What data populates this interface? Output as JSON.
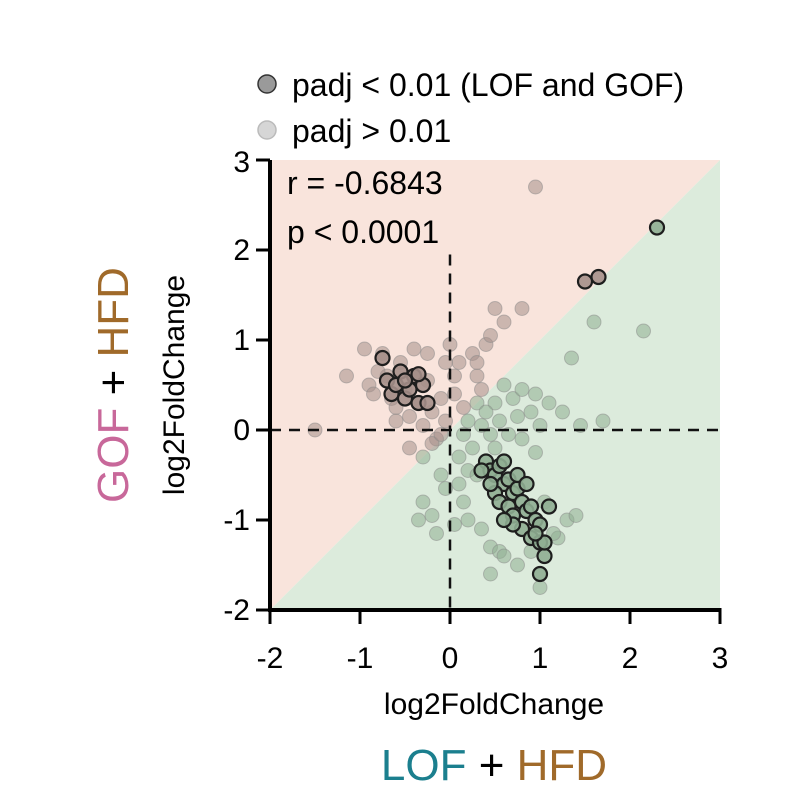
{
  "chart_data": {
    "type": "scatter",
    "xlabel": "log2FoldChange",
    "ylabel": "log2FoldChange",
    "xlim": [
      -2,
      3
    ],
    "ylim": [
      -2,
      3
    ],
    "x_ticks": [
      "-2",
      "-1",
      "0",
      "1",
      "2",
      "3"
    ],
    "y_ticks": [
      "-2",
      "-1",
      "0",
      "1",
      "2",
      "3"
    ],
    "x_condition": {
      "part1": "LOF",
      "plus": "+",
      "part2": "HFD"
    },
    "y_condition": {
      "part1": "GOF",
      "plus": "+",
      "part2": "HFD"
    },
    "legend": {
      "significant": "padj < 0.01 (LOF and GOF)",
      "not_significant": "padj > 0.01"
    },
    "annotations": {
      "r": "r = -0.6843",
      "p": "p < 0.0001"
    },
    "colors": {
      "region_upper": "#f9e4dc",
      "region_lower": "#dcebdc",
      "brown_fill": "#a58f8a",
      "green_fill": "#8fae92",
      "sig_edge": "#1e1e1e",
      "ns_edge": "#8a8a8a",
      "lof_color": "#1b7f8e",
      "gof_color": "#c8689a",
      "hfd_color": "#a06a2a",
      "legend_sig": "#9a9a9a",
      "legend_ns": "#d6d6d6"
    },
    "series": [
      {
        "name": "padj > 0.01",
        "points": [
          [
            -1.5,
            0.0
          ],
          [
            -1.15,
            0.6
          ],
          [
            -0.95,
            0.9
          ],
          [
            -0.9,
            0.5
          ],
          [
            -0.85,
            0.4
          ],
          [
            -0.75,
            0.85
          ],
          [
            -0.7,
            0.6
          ],
          [
            -0.65,
            0.35
          ],
          [
            -0.6,
            0.25
          ],
          [
            -0.55,
            0.75
          ],
          [
            -0.5,
            0.45
          ],
          [
            -0.45,
            0.15
          ],
          [
            -0.4,
            0.9
          ],
          [
            -0.35,
            0.3
          ],
          [
            -0.3,
            0.05
          ],
          [
            -0.25,
            0.55
          ],
          [
            -0.2,
            0.2
          ],
          [
            -0.15,
            -0.1
          ],
          [
            -0.1,
            0.35
          ],
          [
            -0.05,
            0.1
          ],
          [
            0.0,
            0.95
          ],
          [
            0.05,
            0.6
          ],
          [
            0.1,
            0.75
          ],
          [
            -0.45,
            -0.2
          ],
          [
            -0.3,
            -0.3
          ],
          [
            -0.2,
            -0.15
          ],
          [
            -0.1,
            -0.05
          ],
          [
            0.25,
            0.85
          ],
          [
            0.3,
            0.6
          ],
          [
            0.4,
            0.95
          ],
          [
            0.45,
            1.05
          ],
          [
            0.5,
            1.35
          ],
          [
            0.6,
            1.2
          ],
          [
            0.8,
            1.35
          ],
          [
            0.95,
            2.7
          ],
          [
            1.6,
            1.2
          ],
          [
            2.15,
            1.1
          ],
          [
            1.35,
            0.8
          ],
          [
            0.5,
            0.3
          ],
          [
            0.6,
            0.5
          ],
          [
            0.7,
            0.35
          ],
          [
            0.8,
            0.45
          ],
          [
            0.9,
            0.2
          ],
          [
            0.95,
            0.4
          ],
          [
            1.1,
            0.3
          ],
          [
            1.25,
            0.2
          ],
          [
            1.45,
            0.05
          ],
          [
            0.3,
            0.3
          ],
          [
            0.2,
            0.1
          ],
          [
            0.15,
            -0.05
          ],
          [
            0.35,
            0.05
          ],
          [
            0.4,
            0.2
          ],
          [
            0.25,
            -0.2
          ],
          [
            0.1,
            -0.3
          ],
          [
            -0.1,
            -0.5
          ],
          [
            -0.05,
            -0.65
          ],
          [
            0.1,
            -0.6
          ],
          [
            0.15,
            -0.8
          ],
          [
            -0.2,
            -0.95
          ],
          [
            -0.3,
            -0.8
          ],
          [
            -0.35,
            -1.0
          ],
          [
            -0.15,
            -1.15
          ],
          [
            0.05,
            -1.05
          ],
          [
            0.2,
            -1.0
          ],
          [
            0.35,
            -1.1
          ],
          [
            0.45,
            -1.3
          ],
          [
            0.55,
            -1.35
          ],
          [
            0.6,
            -1.4
          ],
          [
            0.75,
            -1.5
          ],
          [
            0.9,
            -1.35
          ],
          [
            0.45,
            -1.6
          ],
          [
            1.0,
            -1.75
          ],
          [
            1.2,
            -1.2
          ],
          [
            1.3,
            -1.0
          ],
          [
            1.4,
            -0.95
          ],
          [
            1.15,
            -1.15
          ],
          [
            1.05,
            -0.8
          ],
          [
            0.2,
            -0.45
          ],
          [
            0.3,
            -0.5
          ],
          [
            0.5,
            -0.2
          ],
          [
            0.65,
            -0.05
          ],
          [
            0.8,
            -0.1
          ],
          [
            0.95,
            -0.25
          ],
          [
            1.0,
            0.05
          ],
          [
            0.75,
            0.15
          ],
          [
            0.55,
            0.1
          ],
          [
            0.45,
            -0.05
          ],
          [
            0.05,
            0.4
          ],
          [
            0.15,
            0.25
          ],
          [
            0.35,
            0.45
          ],
          [
            -0.6,
            0.1
          ],
          [
            -0.8,
            0.65
          ],
          [
            -0.25,
            0.85
          ],
          [
            -0.05,
            0.75
          ],
          [
            0.3,
            0.75
          ],
          [
            1.7,
            0.1
          ]
        ]
      },
      {
        "name": "padj < 0.01 (LOF and GOF)",
        "points": [
          [
            -0.75,
            0.8
          ],
          [
            -0.7,
            0.55
          ],
          [
            -0.65,
            0.4
          ],
          [
            -0.6,
            0.5
          ],
          [
            -0.55,
            0.65
          ],
          [
            -0.5,
            0.35
          ],
          [
            -0.45,
            0.45
          ],
          [
            -0.4,
            0.6
          ],
          [
            -0.35,
            0.3
          ],
          [
            -0.3,
            0.5
          ],
          [
            -0.5,
            0.55
          ],
          [
            -0.35,
            0.62
          ],
          [
            -0.25,
            0.3
          ],
          [
            1.5,
            1.65
          ],
          [
            1.65,
            1.7
          ],
          [
            2.3,
            2.25
          ],
          [
            0.4,
            -0.35
          ],
          [
            0.45,
            -0.45
          ],
          [
            0.5,
            -0.5
          ],
          [
            0.55,
            -0.4
          ],
          [
            0.6,
            -0.6
          ],
          [
            0.65,
            -0.55
          ],
          [
            0.7,
            -0.7
          ],
          [
            0.75,
            -0.65
          ],
          [
            0.8,
            -0.8
          ],
          [
            0.85,
            -0.9
          ],
          [
            0.9,
            -0.85
          ],
          [
            0.95,
            -1.0
          ],
          [
            1.0,
            -1.05
          ],
          [
            0.5,
            -0.7
          ],
          [
            0.55,
            -0.8
          ],
          [
            0.65,
            -0.85
          ],
          [
            0.7,
            -0.95
          ],
          [
            0.8,
            -1.1
          ],
          [
            0.9,
            -1.2
          ],
          [
            0.45,
            -0.6
          ],
          [
            0.35,
            -0.45
          ],
          [
            0.6,
            -0.35
          ],
          [
            0.75,
            -0.5
          ],
          [
            0.85,
            -0.6
          ],
          [
            1.0,
            -1.25
          ],
          [
            1.05,
            -1.4
          ],
          [
            1.1,
            -0.85
          ],
          [
            1.0,
            -1.6
          ],
          [
            1.05,
            -1.25
          ],
          [
            0.95,
            -1.15
          ],
          [
            0.7,
            -1.05
          ],
          [
            0.6,
            -1.0
          ]
        ]
      }
    ]
  }
}
